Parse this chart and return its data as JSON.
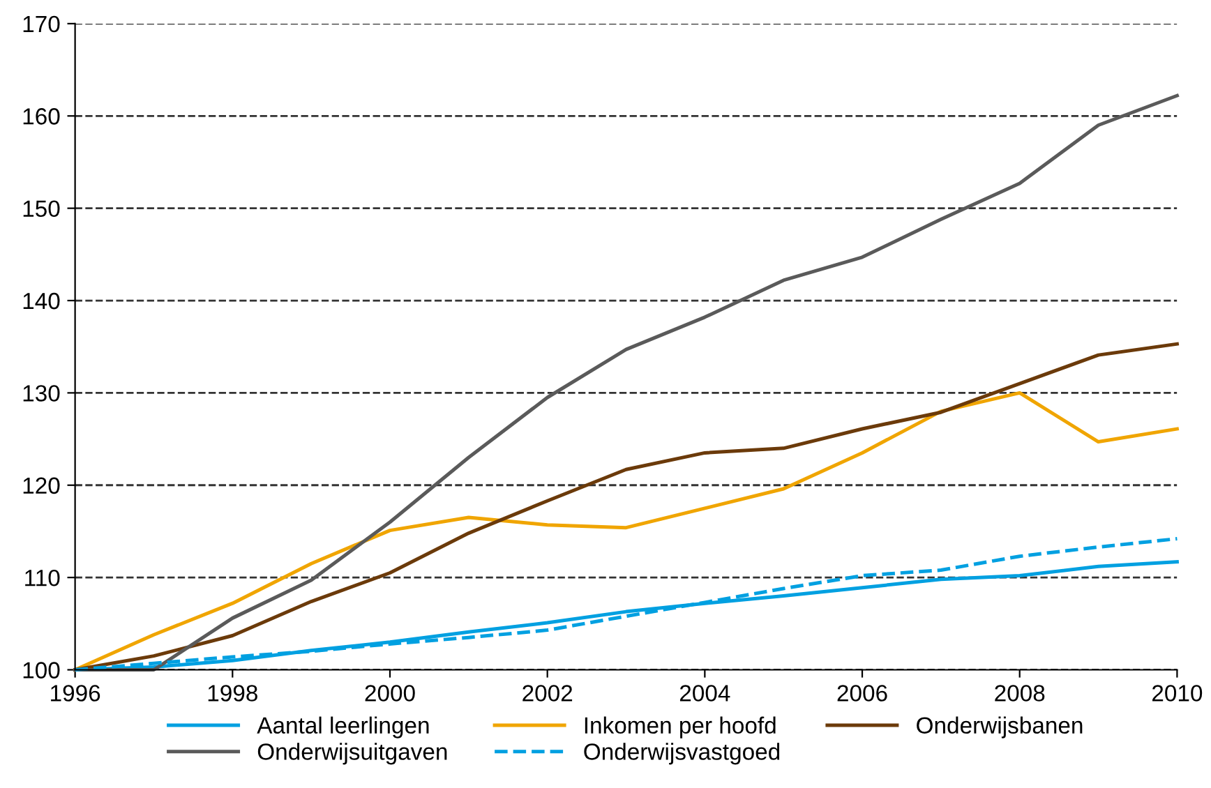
{
  "chart_data": {
    "type": "line",
    "x": [
      1996,
      1997,
      1998,
      1999,
      2000,
      2001,
      2002,
      2003,
      2004,
      2005,
      2006,
      2007,
      2008,
      2009,
      2010
    ],
    "xlim": [
      1996,
      2010
    ],
    "xticks": [
      1996,
      1998,
      2000,
      2002,
      2004,
      2006,
      2008,
      2010
    ],
    "ylim": [
      100,
      170
    ],
    "yticks": [
      100,
      110,
      120,
      130,
      140,
      150,
      160,
      170
    ],
    "grid": "y",
    "legend": "bottom",
    "marker": "none",
    "series": [
      {
        "name": "Aantal leerlingen",
        "color": "#00a0e1",
        "line_style": "solid",
        "values": [
          100,
          100.3,
          101.0,
          102.1,
          103.0,
          104.1,
          105.1,
          106.3,
          107.2,
          108.0,
          108.9,
          109.8,
          110.2,
          111.2,
          111.7
        ]
      },
      {
        "name": "Inkomen per hoofd",
        "color": "#f0a500",
        "line_style": "solid",
        "values": [
          100,
          103.8,
          107.2,
          111.5,
          115.1,
          116.5,
          115.7,
          115.4,
          117.5,
          119.6,
          123.5,
          128.0,
          130.0,
          124.7,
          126.1
        ]
      },
      {
        "name": "Onderwijsbanen",
        "color": "#6b3a0a",
        "line_style": "solid",
        "values": [
          100,
          101.5,
          103.7,
          107.4,
          110.5,
          114.8,
          118.3,
          121.7,
          123.5,
          124.0,
          126.1,
          127.9,
          131.0,
          134.1,
          135.3
        ]
      },
      {
        "name": "Onderwijsuitgaven",
        "color": "#5a5a5a",
        "line_style": "solid",
        "values": [
          100,
          100,
          105.6,
          109.7,
          116.0,
          123.0,
          129.5,
          134.7,
          138.2,
          142.2,
          144.7,
          148.8,
          152.7,
          159.0,
          162.2
        ]
      },
      {
        "name": "Onderwijsvastgoed",
        "color": "#00a0e1",
        "line_style": "dashed",
        "values": [
          100,
          100.7,
          101.4,
          102.0,
          102.8,
          103.5,
          104.3,
          105.8,
          107.3,
          108.8,
          110.2,
          110.8,
          112.3,
          113.3,
          114.2
        ]
      }
    ]
  }
}
